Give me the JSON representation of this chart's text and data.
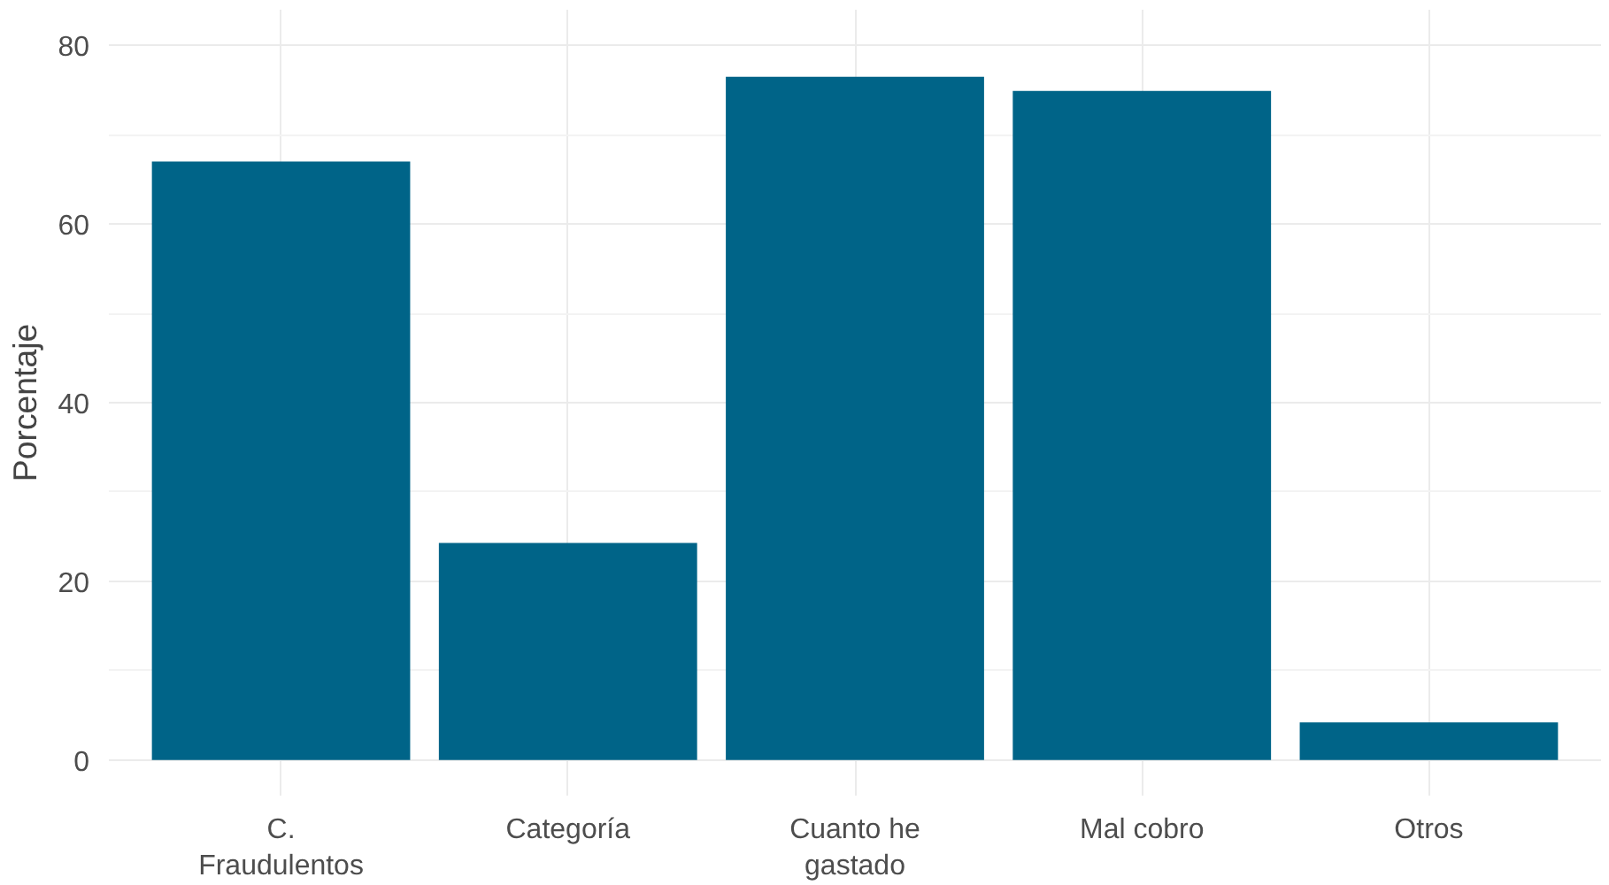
{
  "chart_data": {
    "type": "bar",
    "ylabel": "Porcentaje",
    "categories": [
      "C. Fraudulentos",
      "Categoría",
      "Cuanto he gastado",
      "Mal cobro",
      "Otros"
    ],
    "values": [
      67,
      24.3,
      76.5,
      74.9,
      4.2
    ],
    "color": "#006488",
    "ylim": [
      -4,
      84
    ],
    "yticks": [
      0,
      20,
      40,
      60,
      80
    ],
    "grid": true
  }
}
